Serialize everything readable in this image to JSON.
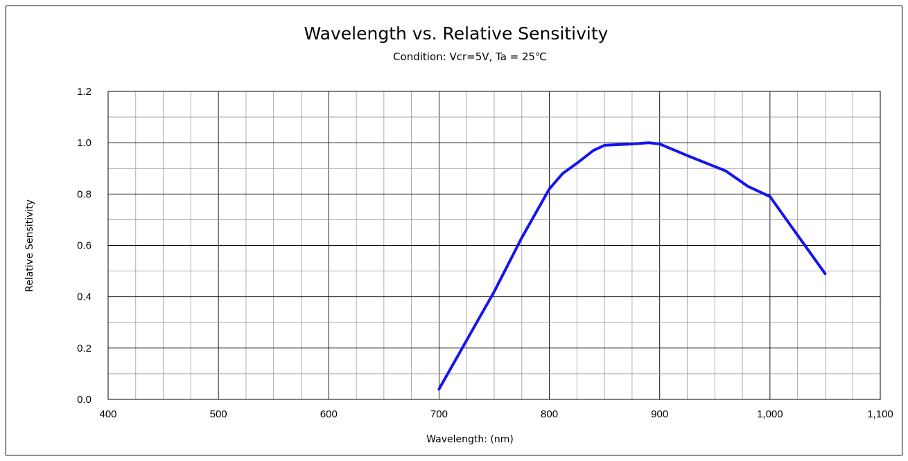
{
  "chart_data": {
    "type": "line",
    "title": "Wavelength vs. Relative Sensitivity",
    "subtitle": "Condition: Vcr=5V, Ta = 25℃",
    "xlabel": "Wavelength: (nm)",
    "ylabel": "Relative Sensitivity",
    "xlim": [
      400,
      1100
    ],
    "ylim": [
      0,
      1.2
    ],
    "x_ticks": [
      "400",
      "500",
      "600",
      "700",
      "800",
      "900",
      "1,000",
      "1,100"
    ],
    "y_ticks": [
      "0.0",
      "0.2",
      "0.4",
      "0.6",
      "0.8",
      "1.0",
      "1.2"
    ],
    "grid": true,
    "legend": "none",
    "line_color": "#1515ee",
    "series": [
      {
        "x": [
          700,
          725,
          750,
          775,
          800,
          812,
          825,
          840,
          850,
          875,
          890,
          900,
          925,
          960,
          980,
          1000,
          1025,
          1050
        ],
        "y": [
          0.04,
          0.23,
          0.42,
          0.63,
          0.82,
          0.88,
          0.92,
          0.97,
          0.99,
          0.995,
          1.0,
          0.995,
          0.95,
          0.89,
          0.83,
          0.79,
          0.64,
          0.49
        ]
      }
    ]
  }
}
